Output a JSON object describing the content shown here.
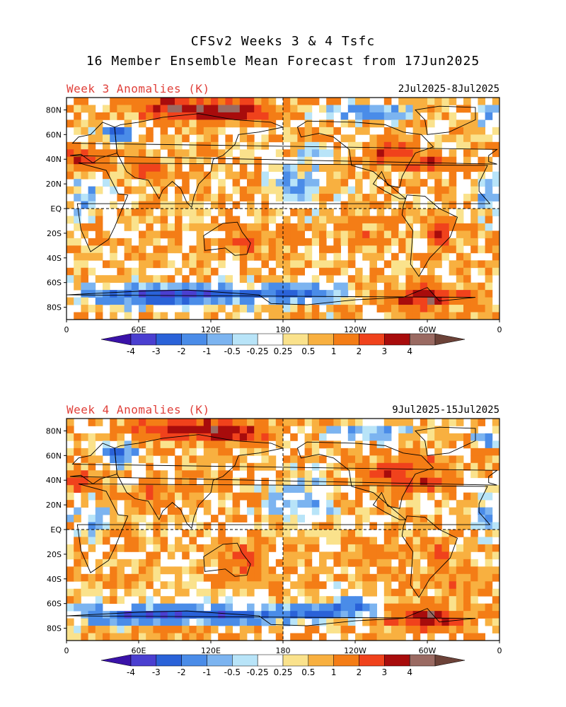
{
  "title": {
    "line1": "CFSv2 Weeks 3 & 4 Tsfc",
    "line2": "16 Member Ensemble Mean Forecast from 17Jun2025"
  },
  "panels": [
    {
      "label": "Week 3 Anomalies (K)",
      "dates": "2Jul2025-8Jul2025"
    },
    {
      "label": "Week 4 Anomalies (K)",
      "dates": "9Jul2025-15Jul2025"
    }
  ],
  "axes": {
    "lat_ticks": [
      "80N",
      "60N",
      "40N",
      "20N",
      "EQ",
      "20S",
      "40S",
      "60S",
      "80S"
    ],
    "lon_ticks": [
      "0",
      "60E",
      "120E",
      "180",
      "120W",
      "60W",
      "0"
    ]
  },
  "colorbar": {
    "labels": [
      "-4",
      "-3",
      "-2",
      "-1",
      "-0.5",
      "-0.25",
      "0.25",
      "0.5",
      "1",
      "2",
      "3",
      "4"
    ],
    "colors": [
      "#3a12a8",
      "#4a3fd0",
      "#2a62d8",
      "#4a8ce8",
      "#7cb4f0",
      "#b8e4f8",
      "#ffffff",
      "#fae28c",
      "#f8b040",
      "#f47d16",
      "#f0421c",
      "#a80c0c",
      "#9a6a62",
      "#6c4238"
    ]
  },
  "chart_data": {
    "type": "heatmap",
    "variable": "Tsfc anomaly",
    "units": "K",
    "projection": "cylindrical equidistant, 0 to 360",
    "grid_lines": [
      "EQ",
      "180"
    ]
  }
}
